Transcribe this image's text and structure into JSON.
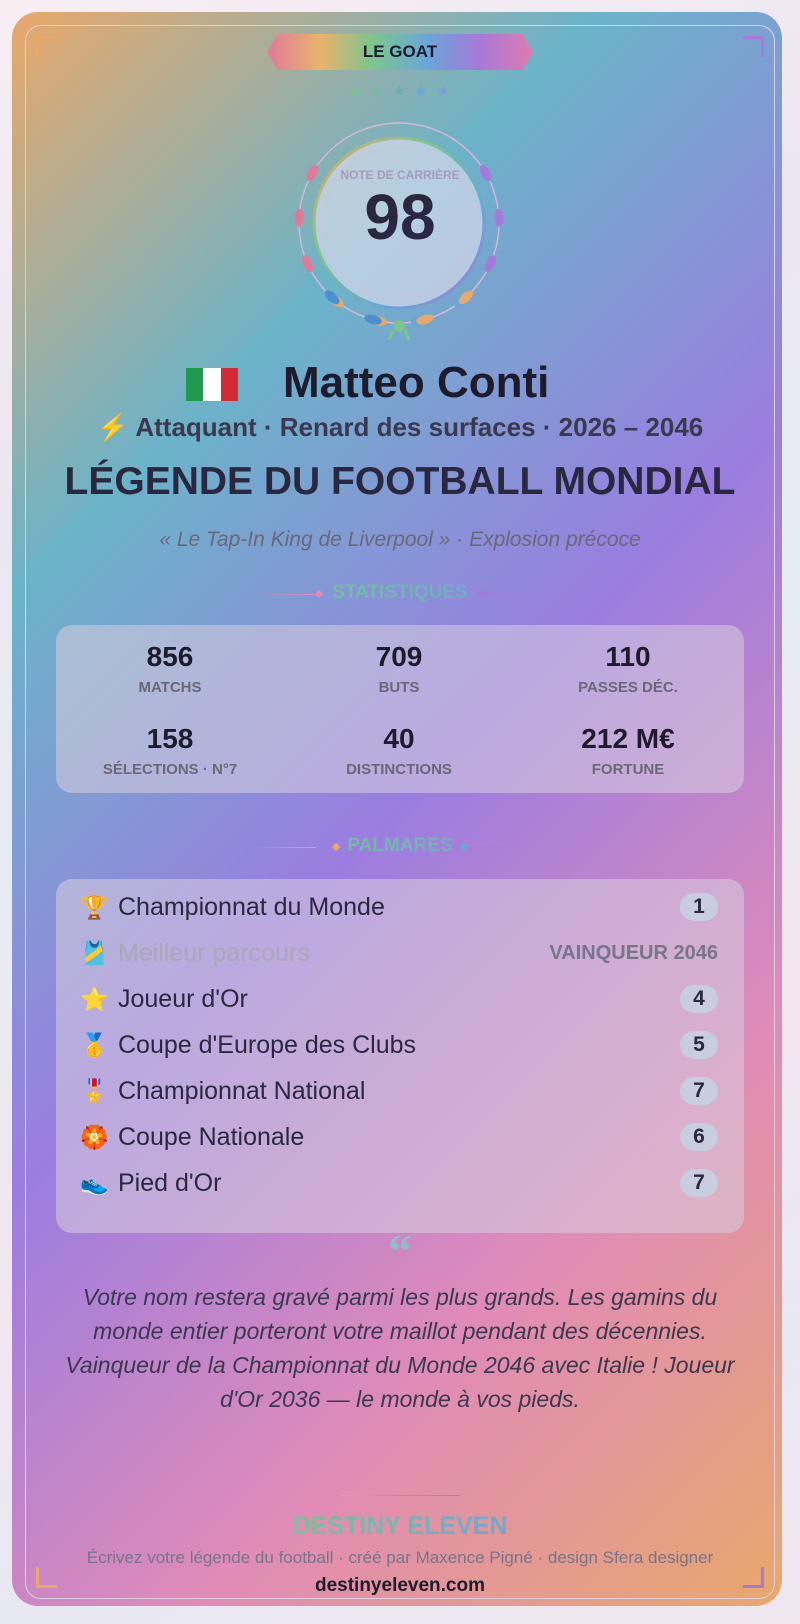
{
  "badge": "LE GOAT",
  "rating": {
    "label": "NOTE DE CARRIÈRE",
    "value": "98"
  },
  "player": {
    "name": "Matteo Conti",
    "icon": "⚡",
    "subtitle": "Attaquant · Renard des surfaces · 2026 – 2046"
  },
  "title": "LÉGENDE DU FOOTBALL MONDIAL",
  "tagline": "« Le Tap-In King de Liverpool » · Explosion précoce",
  "stats_heading": "STATISTIQUES",
  "stats": [
    {
      "value": "856",
      "label": "MATCHS"
    },
    {
      "value": "709",
      "label": "BUTS"
    },
    {
      "value": "110",
      "label": "PASSES DÉC."
    },
    {
      "value": "158",
      "label": "SÉLECTIONS · N°7"
    },
    {
      "value": "40",
      "label": "DISTINCTIONS"
    },
    {
      "value": "212 M€",
      "label": "FORTUNE"
    }
  ],
  "palmares_heading": "PALMARÈS",
  "palmares": [
    {
      "icon": "🏆",
      "name": "Championnat du Monde",
      "count": "1"
    },
    {
      "icon": "🎽",
      "name": "Meilleur parcours",
      "result": "VAINQUEUR 2046"
    },
    {
      "icon": "⭐",
      "name": "Joueur d'Or",
      "count": "4"
    },
    {
      "icon": "🥇",
      "name": "Coupe d'Europe des Clubs",
      "count": "5"
    },
    {
      "icon": "🎖️",
      "name": "Championnat National",
      "count": "7"
    },
    {
      "icon": "🏵️",
      "name": "Coupe Nationale",
      "count": "6"
    },
    {
      "icon": "👟",
      "name": "Pied d'Or",
      "count": "7"
    }
  ],
  "quote_mark": "“",
  "quote": "Votre nom restera gravé parmi les plus grands. Les gamins du monde entier porteront votre maillot pendant des décennies. Vainqueur de la Championnat du Monde 2046 avec Italie ! Joueur d'Or 2036 — le monde à vos pieds.",
  "footer": {
    "brand": "DESTINY ELEVEN",
    "credit": "Écrivez votre légende du football · créé par Maxence Pigné · design Sfera designer",
    "url": "destinyeleven.com"
  }
}
